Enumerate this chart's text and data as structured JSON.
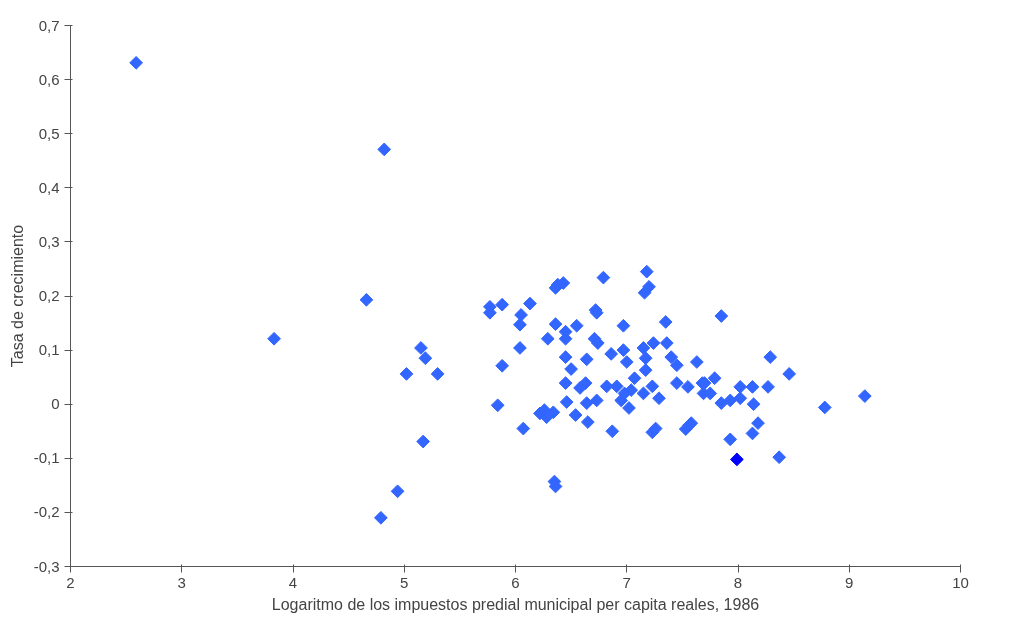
{
  "chart_data": {
    "type": "scatter",
    "xlabel": "Logaritmo de los impuestos predial municipal per capita reales, 1986",
    "ylabel": "Tasa de crecimiento",
    "xlim": [
      2,
      10
    ],
    "ylim": [
      -0.3,
      0.7
    ],
    "xticks": [
      2,
      3,
      4,
      5,
      6,
      7,
      8,
      9,
      10
    ],
    "yticks": [
      {
        "value": -0.3,
        "label": "-0,3"
      },
      {
        "value": -0.2,
        "label": "-0,2"
      },
      {
        "value": -0.1,
        "label": "-0,1"
      },
      0,
      {
        "value": 0.1,
        "label": "0,1"
      },
      {
        "value": 0.2,
        "label": "0,2"
      },
      {
        "value": 0.3,
        "label": "0,3"
      },
      {
        "value": 0.4,
        "label": "0,4"
      },
      {
        "value": 0.5,
        "label": "0,5"
      },
      {
        "value": 0.6,
        "label": "0,6"
      },
      {
        "value": 0.7,
        "label": "0,7"
      }
    ],
    "grid": false,
    "marker": "diamond",
    "series": [
      {
        "color": "#3366ff",
        "x": [
          2.59,
          4.82,
          3.83,
          4.66,
          5.15,
          5.19,
          5.02,
          5.3,
          5.17,
          4.94,
          4.79,
          5.77,
          5.88,
          5.77,
          6.13,
          6.05,
          6.04,
          6.38,
          6.43,
          6.36,
          6.79,
          7.18,
          7.2,
          7.16,
          6.72,
          6.73,
          6.36,
          6.55,
          6.45,
          6.29,
          6.45,
          6.97,
          7.35,
          6.71,
          6.74,
          6.04,
          6.45,
          6.64,
          6.86,
          6.97,
          7.0,
          5.88,
          6.5,
          7.15,
          7.24,
          7.36,
          7.17,
          7.17,
          7.4,
          7.45,
          7.63,
          7.07,
          6.45,
          6.63,
          6.58,
          6.82,
          6.91,
          6.98,
          7.04,
          6.95,
          7.23,
          7.15,
          7.45,
          7.55,
          7.68,
          7.69,
          7.29,
          6.73,
          6.64,
          6.46,
          5.84,
          7.02,
          6.26,
          6.34,
          6.28,
          6.22,
          6.54,
          6.65,
          6.07,
          6.87,
          7.23,
          7.26,
          7.56,
          7.53,
          7.85,
          8.29,
          8.46,
          7.7,
          7.79,
          7.75,
          8.02,
          8.13,
          8.27,
          7.85,
          7.93,
          8.02,
          8.14,
          8.78,
          9.14,
          7.58,
          8.18,
          8.13,
          7.93,
          8.37,
          6.35,
          6.36
        ],
        "values": [
          0.631,
          0.471,
          0.121,
          0.193,
          0.104,
          0.085,
          0.056,
          0.056,
          -0.069,
          -0.161,
          -0.21,
          0.18,
          0.184,
          0.169,
          0.186,
          0.165,
          0.147,
          0.221,
          0.224,
          0.215,
          0.234,
          0.245,
          0.217,
          0.206,
          0.174,
          0.169,
          0.148,
          0.145,
          0.134,
          0.121,
          0.121,
          0.145,
          0.152,
          0.121,
          0.113,
          0.104,
          0.087,
          0.083,
          0.093,
          0.1,
          0.078,
          0.071,
          0.065,
          0.104,
          0.113,
          0.113,
          0.085,
          0.063,
          0.087,
          0.072,
          0.078,
          0.048,
          0.039,
          0.039,
          0.03,
          0.033,
          0.033,
          0.02,
          0.026,
          0.007,
          0.033,
          0.02,
          0.039,
          0.032,
          0.039,
          0.02,
          0.011,
          0.007,
          0.002,
          0.004,
          -0.002,
          -0.007,
          -0.011,
          -0.015,
          -0.024,
          -0.017,
          -0.02,
          -0.033,
          -0.045,
          -0.05,
          -0.052,
          -0.045,
          -0.039,
          -0.046,
          0.163,
          0.087,
          0.056,
          0.039,
          0.048,
          0.02,
          0.032,
          0.032,
          0.032,
          0.002,
          0.007,
          0.011,
          0.0,
          -0.006,
          0.015,
          -0.035,
          -0.035,
          -0.054,
          -0.065,
          -0.098,
          -0.143,
          -0.152
        ]
      },
      {
        "color": "#0000ff",
        "x": [
          7.99
        ],
        "values": [
          -0.102
        ]
      }
    ]
  }
}
